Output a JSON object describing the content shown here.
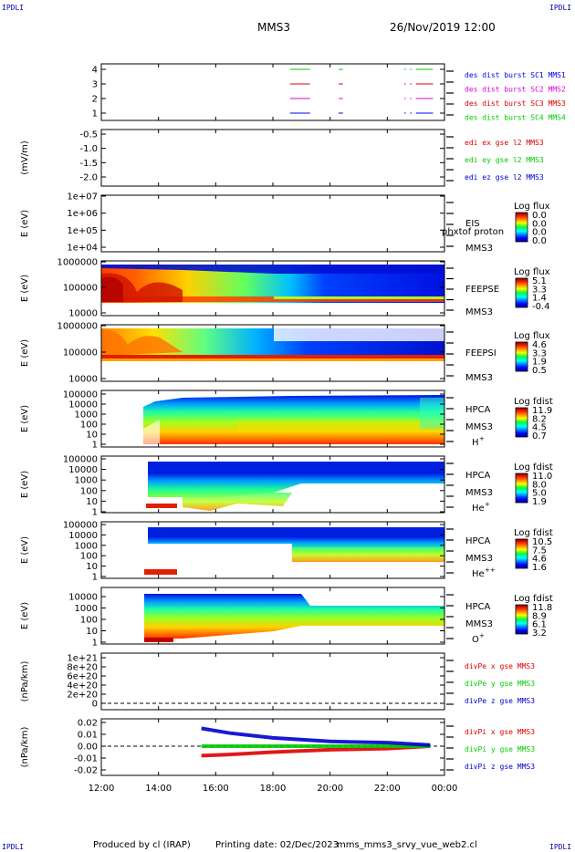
{
  "header": {
    "corner_label": "IPDLI",
    "spacecraft": "MMS3",
    "date_time": "26/Nov/2019 12:00"
  },
  "footer": {
    "produced_by": "Produced by cl (IRAP)",
    "printing_date": "Printing date: 02/Dec/2023",
    "file_name": "mms_mms3_srvy_vue_web2.cl"
  },
  "colors": {
    "mms1": "#00cc00",
    "mms2": "#dd00dd",
    "mms3": "#dd0000",
    "mms4": "#0000ee",
    "x_comp": "#dd0000",
    "y_comp": "#00cc00",
    "z_comp": "#0000cc"
  },
  "chart_data": {
    "type": "heatmap",
    "time_axis": {
      "ticks": [
        "12:00",
        "14:00",
        "16:00",
        "18:00",
        "20:00",
        "22:00",
        "00:00"
      ],
      "range_hours": [
        12,
        24
      ]
    },
    "panels": [
      {
        "id": "burst",
        "type": "timeline",
        "yticks": [
          "4",
          "3",
          "2",
          "1"
        ],
        "legend": [
          "des dist burst SC1 MMS1",
          "des dist burst SC2 MMS2",
          "des dist burst SC3 MMS3",
          "des dist burst SC4 MMS4"
        ],
        "legend_colors": [
          "#0000ee",
          "#dd00dd",
          "#dd0000",
          "#00cc00"
        ],
        "intervals_hours": [
          [
            18.6,
            19.3
          ],
          [
            20.3,
            20.45
          ],
          [
            22.6,
            22.65
          ],
          [
            22.8,
            22.85
          ],
          [
            23.0,
            23.6
          ]
        ]
      },
      {
        "id": "edi",
        "type": "line",
        "ylabel": "(mV/m)",
        "yticks": [
          "-0.5",
          "-1.0",
          "-1.5",
          "-2.0"
        ],
        "legend": [
          "edi ex gse l2 MMS3",
          "edi ey gse l2 MMS3",
          "edi ez gse l2 MMS3"
        ],
        "legend_colors": [
          "#dd0000",
          "#00cc00",
          "#0000cc"
        ]
      },
      {
        "id": "eis",
        "type": "heatmap",
        "ylabel": "E (eV)",
        "yticks": [
          "1e+07",
          "1e+06",
          "1e+05",
          "1e+04"
        ],
        "label_lines": [
          "EIS",
          "MMS3"
        ],
        "overlay_text": "phxtof proton",
        "cbar_title": "Log flux",
        "cbar_ticks": [
          "0.0",
          "0.0",
          "0.0",
          "0.0"
        ]
      },
      {
        "id": "feepse",
        "type": "heatmap",
        "ylabel": "E (eV)",
        "yticks": [
          "1000000",
          "100000",
          "10000"
        ],
        "label_lines": [
          "FEEPSE",
          "MMS3"
        ],
        "cbar_title": "Log flux",
        "cbar_ticks": [
          "5.1",
          "3.3",
          "1.4",
          "-0.4"
        ]
      },
      {
        "id": "feepsi",
        "type": "heatmap",
        "ylabel": "E (eV)",
        "yticks": [
          "1000000",
          "100000",
          "10000"
        ],
        "label_lines": [
          "FEEPSI",
          "MMS3"
        ],
        "cbar_title": "Log flux",
        "cbar_ticks": [
          "4.6",
          "3.3",
          "1.9",
          "0.5"
        ]
      },
      {
        "id": "hpca_h",
        "type": "heatmap",
        "ylabel": "E (eV)",
        "yticks": [
          "100000",
          "10000",
          "1000",
          "100",
          "10",
          "1"
        ],
        "label_lines": [
          "HPCA",
          "MMS3"
        ],
        "species": "H",
        "species_sup": "+",
        "cbar_title": "Log fdist",
        "cbar_ticks": [
          "11.9",
          "8.2",
          "4.5",
          "0.7"
        ]
      },
      {
        "id": "hpca_he1",
        "type": "heatmap",
        "ylabel": "E (eV)",
        "yticks": [
          "100000",
          "10000",
          "1000",
          "100",
          "10",
          "1"
        ],
        "label_lines": [
          "HPCA",
          "MMS3"
        ],
        "species": "He",
        "species_sup": "+",
        "cbar_title": "Log fdist",
        "cbar_ticks": [
          "11.0",
          "8.0",
          "5.0",
          "1.9"
        ]
      },
      {
        "id": "hpca_he2",
        "type": "heatmap",
        "ylabel": "E (eV)",
        "yticks": [
          "100000",
          "10000",
          "1000",
          "100",
          "10",
          "1"
        ],
        "label_lines": [
          "HPCA",
          "MMS3"
        ],
        "species": "He",
        "species_sup": "++",
        "cbar_title": "Log fdist",
        "cbar_ticks": [
          "10.5",
          "7.5",
          "4.6",
          "1.6"
        ]
      },
      {
        "id": "hpca_o",
        "type": "heatmap",
        "ylabel": "E (eV)",
        "yticks": [
          "10000",
          "1000",
          "100",
          "10",
          "1"
        ],
        "label_lines": [
          "HPCA",
          "MMS3"
        ],
        "species": "O",
        "species_sup": "+",
        "cbar_title": "Log fdist",
        "cbar_ticks": [
          "11.8",
          "8.9",
          "6.1",
          "3.2"
        ]
      },
      {
        "id": "divpe",
        "type": "line",
        "ylabel": "(nPa/km)",
        "yticks": [
          "1e+21",
          "8e+20",
          "6e+20",
          "4e+20",
          "2e+20",
          "0"
        ],
        "legend": [
          "divPe x gse MMS3",
          "divPe y gse MMS3",
          "divPe z gse MMS3"
        ],
        "legend_colors": [
          "#dd0000",
          "#00cc00",
          "#0000cc"
        ]
      },
      {
        "id": "divpi",
        "type": "line",
        "ylabel": "(nPa/km)",
        "yticks": [
          "0.02",
          "0.01",
          "0.00",
          "-0.01",
          "-0.02"
        ],
        "ylim": [
          -0.025,
          0.025
        ],
        "legend": [
          "divPi x gse MMS3",
          "divPi y gse MMS3",
          "divPi z gse MMS3"
        ],
        "legend_colors": [
          "#dd0000",
          "#00cc00",
          "#0000cc"
        ],
        "series_start_hour": 15.5,
        "series": [
          {
            "component": "x",
            "hours": [
              15.5,
              16.5,
              18,
              20,
              22,
              23.5
            ],
            "values": [
              -0.008,
              -0.007,
              -0.005,
              -0.003,
              -0.002,
              0.0
            ]
          },
          {
            "component": "y",
            "hours": [
              15.5,
              16.5,
              18,
              20,
              22,
              23.5
            ],
            "values": [
              0.0,
              0.0,
              0.0,
              0.0,
              0.0,
              0.0
            ]
          },
          {
            "component": "z",
            "hours": [
              15.5,
              16.5,
              18,
              20,
              22,
              23.5
            ],
            "values": [
              0.015,
              0.011,
              0.007,
              0.004,
              0.003,
              0.001
            ]
          }
        ]
      }
    ]
  }
}
